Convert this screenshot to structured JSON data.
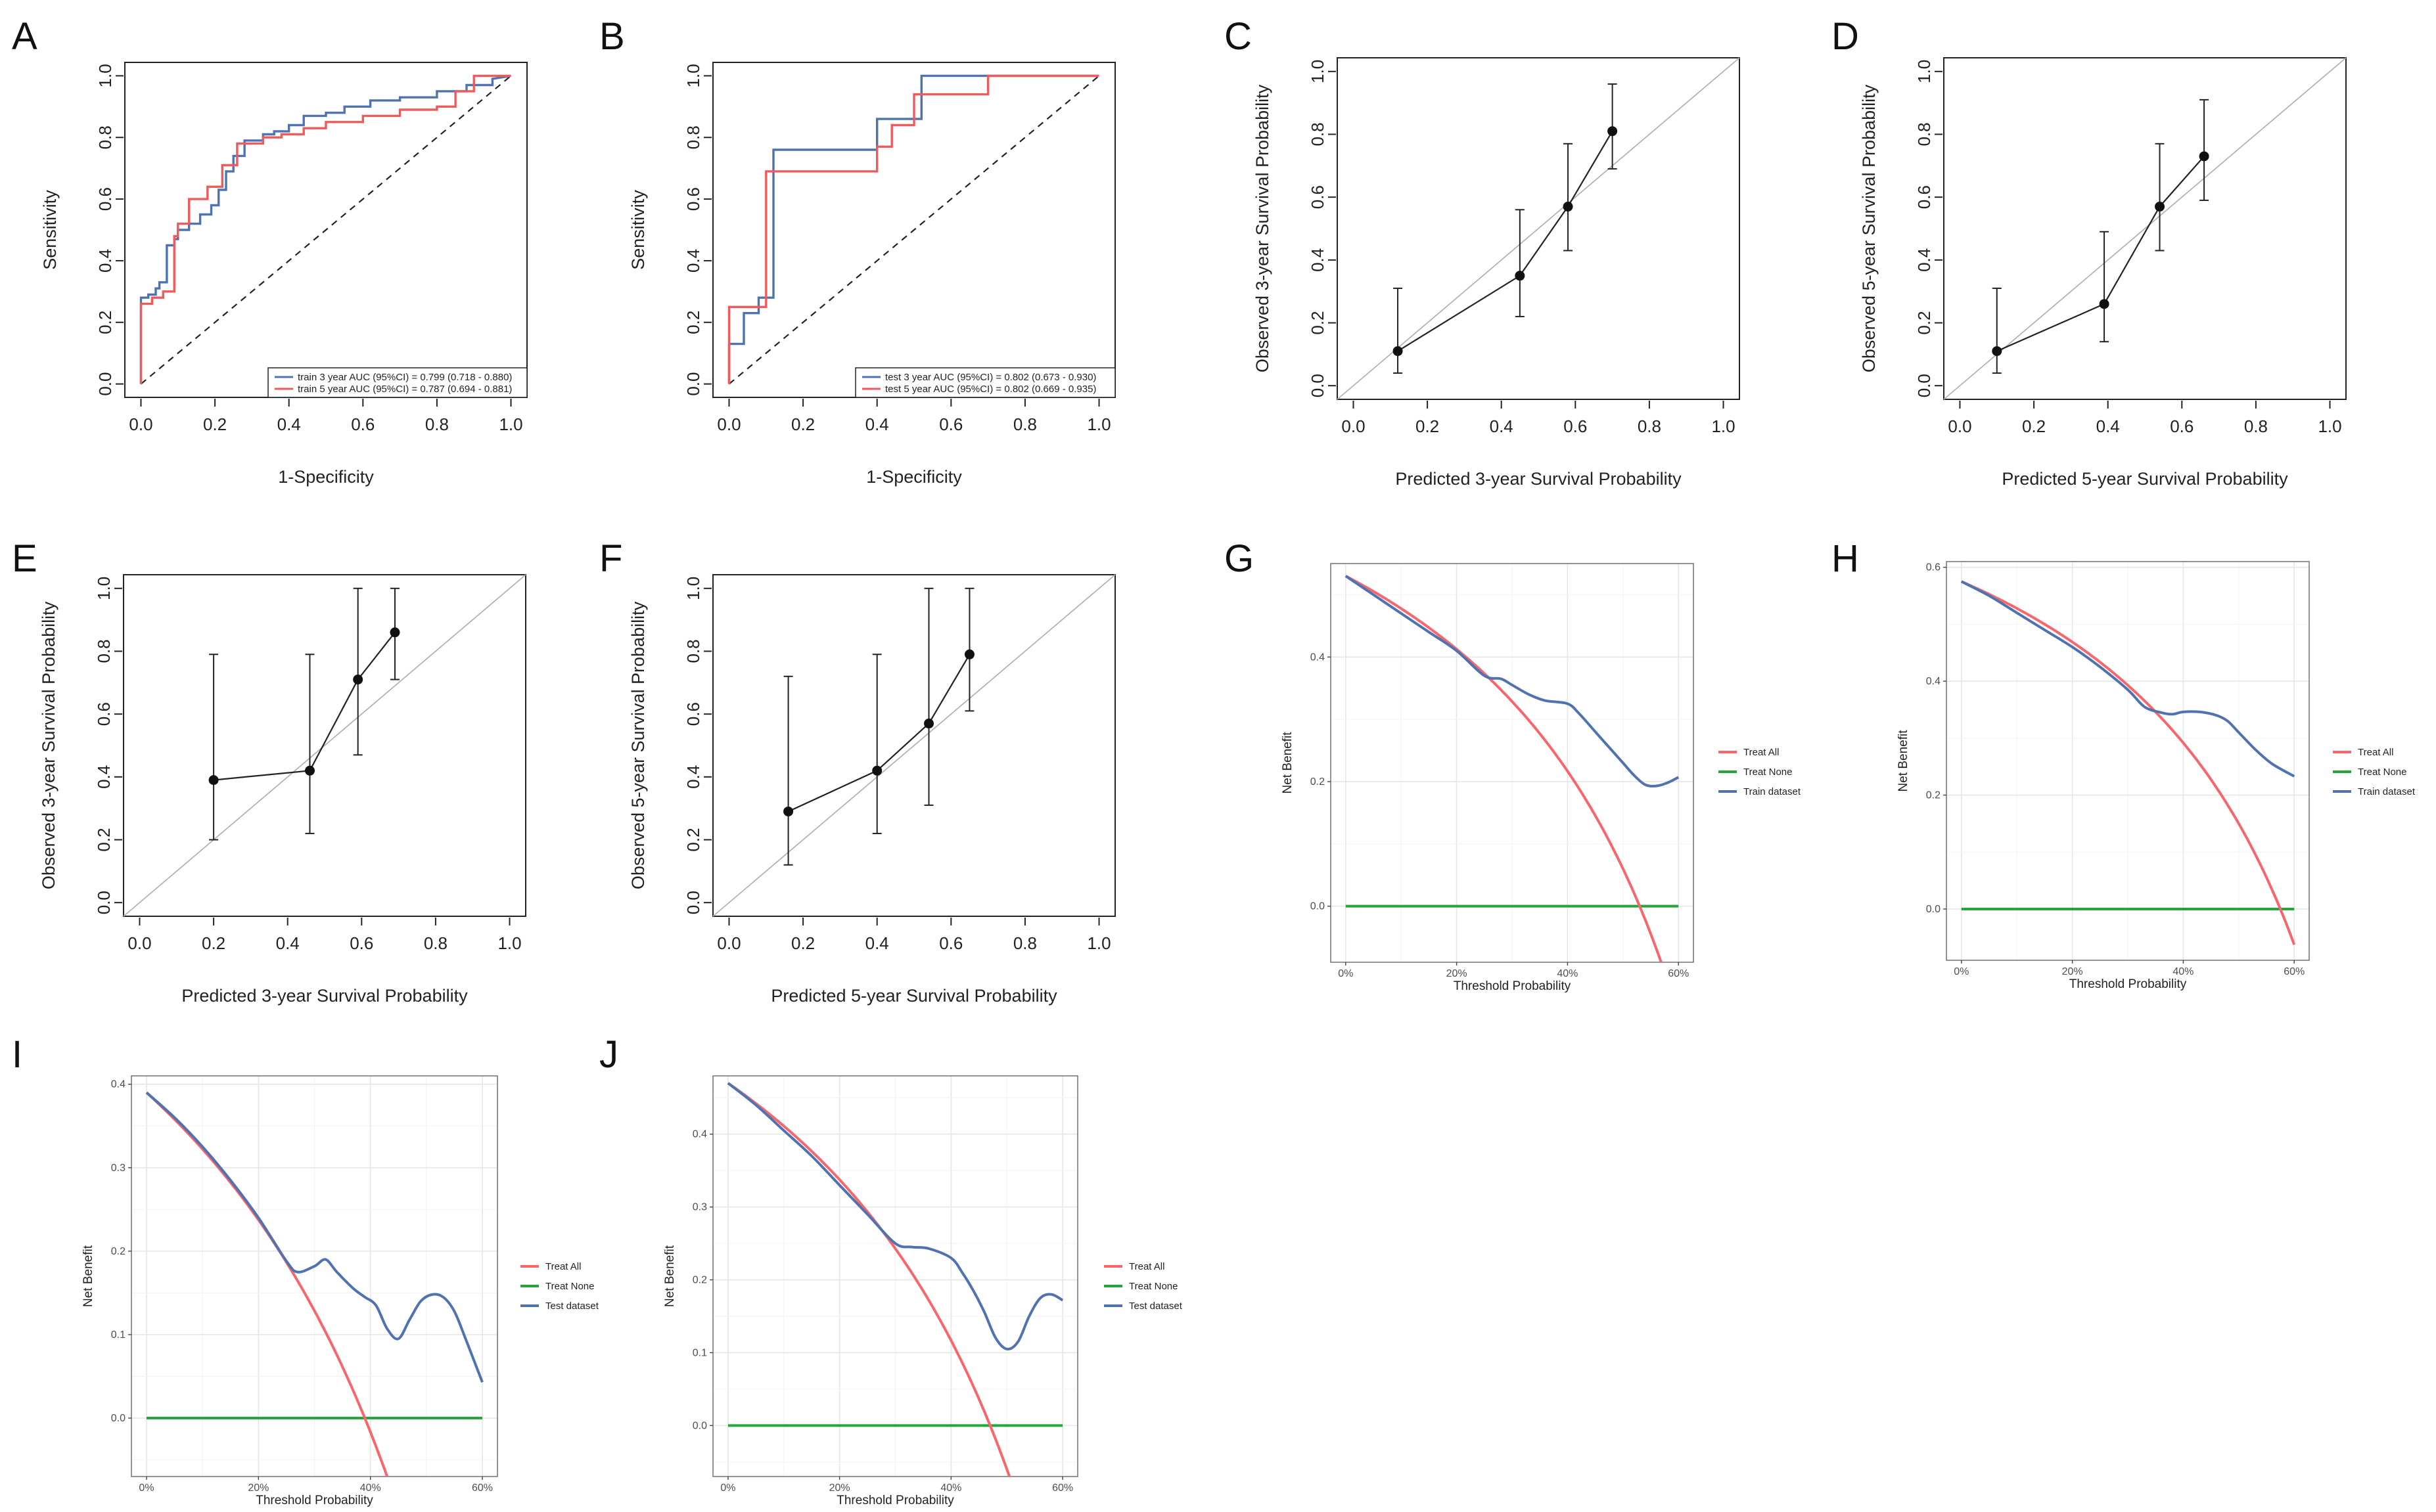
{
  "chart_data": [
    {
      "panel": "A",
      "type": "line",
      "xlabel": "1-Specificity",
      "ylabel": "Sensitivity",
      "xlim": [
        0,
        1
      ],
      "ylim": [
        0,
        1
      ],
      "ticks": [
        "0.0",
        "0.2",
        "0.4",
        "0.6",
        "0.8",
        "1.0"
      ],
      "diagonal": true,
      "series": [
        {
          "name": "train 3 year AUC (95%CI) = 0.799 (0.718 - 0.880)",
          "color": "#4f72b0",
          "x": [
            0,
            0,
            0.02,
            0.02,
            0.04,
            0.04,
            0.05,
            0.05,
            0.07,
            0.07,
            0.09,
            0.09,
            0.1,
            0.1,
            0.13,
            0.13,
            0.16,
            0.16,
            0.19,
            0.19,
            0.21,
            0.21,
            0.23,
            0.23,
            0.25,
            0.25,
            0.28,
            0.28,
            0.33,
            0.33,
            0.36,
            0.36,
            0.4,
            0.4,
            0.44,
            0.44,
            0.5,
            0.5,
            0.55,
            0.55,
            0.62,
            0.62,
            0.7,
            0.7,
            0.8,
            0.8,
            0.88,
            0.88,
            0.95,
            0.95,
            1
          ],
          "y": [
            0,
            0.28,
            0.28,
            0.29,
            0.29,
            0.31,
            0.31,
            0.33,
            0.33,
            0.45,
            0.45,
            0.47,
            0.47,
            0.5,
            0.5,
            0.52,
            0.52,
            0.55,
            0.55,
            0.58,
            0.58,
            0.63,
            0.63,
            0.69,
            0.69,
            0.74,
            0.74,
            0.79,
            0.79,
            0.81,
            0.81,
            0.82,
            0.82,
            0.84,
            0.84,
            0.87,
            0.87,
            0.88,
            0.88,
            0.9,
            0.9,
            0.92,
            0.92,
            0.93,
            0.93,
            0.95,
            0.95,
            0.97,
            0.97,
            0.99,
            1
          ]
        },
        {
          "name": "train 5 year AUC (95%CI) = 0.787 (0.694 - 0.881)",
          "color": "#f05a5a",
          "x": [
            0,
            0,
            0.03,
            0.03,
            0.06,
            0.06,
            0.09,
            0.09,
            0.1,
            0.1,
            0.13,
            0.13,
            0.18,
            0.18,
            0.22,
            0.22,
            0.26,
            0.26,
            0.33,
            0.33,
            0.38,
            0.38,
            0.44,
            0.44,
            0.5,
            0.5,
            0.6,
            0.6,
            0.7,
            0.7,
            0.8,
            0.8,
            0.85,
            0.85,
            0.9,
            0.9,
            1
          ],
          "y": [
            0,
            0.26,
            0.26,
            0.28,
            0.28,
            0.3,
            0.3,
            0.48,
            0.48,
            0.52,
            0.52,
            0.6,
            0.6,
            0.64,
            0.64,
            0.71,
            0.71,
            0.78,
            0.78,
            0.8,
            0.8,
            0.81,
            0.81,
            0.83,
            0.83,
            0.85,
            0.85,
            0.87,
            0.87,
            0.89,
            0.89,
            0.9,
            0.9,
            0.95,
            0.95,
            1,
            1
          ]
        }
      ]
    },
    {
      "panel": "B",
      "type": "line",
      "xlabel": "1-Specificity",
      "ylabel": "Sensitivity",
      "xlim": [
        0,
        1
      ],
      "ylim": [
        0,
        1
      ],
      "ticks": [
        "0.0",
        "0.2",
        "0.4",
        "0.6",
        "0.8",
        "1.0"
      ],
      "diagonal": true,
      "series": [
        {
          "name": "test 3 year AUC (95%CI) = 0.802 (0.673 - 0.930)",
          "color": "#4f72b0",
          "x": [
            0,
            0,
            0.04,
            0.04,
            0.08,
            0.08,
            0.12,
            0.12,
            0.16,
            0.16,
            0.4,
            0.4,
            0.48,
            0.48,
            0.52,
            0.52,
            1
          ],
          "y": [
            0,
            0.13,
            0.13,
            0.23,
            0.23,
            0.28,
            0.28,
            0.76,
            0.76,
            0.76,
            0.76,
            0.86,
            0.86,
            0.86,
            0.86,
            1,
            1
          ]
        },
        {
          "name": "test 5 year AUC (95%CI) = 0.802 (0.669 - 0.935)",
          "color": "#f05a5a",
          "x": [
            0,
            0,
            0.1,
            0.1,
            0.4,
            0.4,
            0.44,
            0.44,
            0.48,
            0.48,
            0.5,
            0.5,
            0.7,
            0.7,
            1
          ],
          "y": [
            0,
            0.25,
            0.25,
            0.69,
            0.69,
            0.77,
            0.77,
            0.84,
            0.84,
            0.84,
            0.84,
            0.94,
            0.94,
            1,
            1
          ]
        }
      ]
    },
    {
      "panel": "C",
      "type": "scatter",
      "xlabel": "Predicted 3-year Survival Probability",
      "ylabel": "Observed 3-year Survival Probability",
      "xlim": [
        0,
        1
      ],
      "ylim": [
        0,
        1
      ],
      "ticks": [
        "0.0",
        "0.2",
        "0.4",
        "0.6",
        "0.8",
        "1.0"
      ],
      "points": [
        {
          "x": 0.12,
          "y": 0.11,
          "lo": 0.04,
          "hi": 0.31
        },
        {
          "x": 0.45,
          "y": 0.35,
          "lo": 0.22,
          "hi": 0.56
        },
        {
          "x": 0.58,
          "y": 0.57,
          "lo": 0.43,
          "hi": 0.77
        },
        {
          "x": 0.7,
          "y": 0.81,
          "lo": 0.69,
          "hi": 0.96
        }
      ]
    },
    {
      "panel": "D",
      "type": "scatter",
      "xlabel": "Predicted 5-year Survival Probability",
      "ylabel": "Observed 5-year Survival Probability",
      "xlim": [
        0,
        1
      ],
      "ylim": [
        0,
        1
      ],
      "ticks": [
        "0.0",
        "0.2",
        "0.4",
        "0.6",
        "0.8",
        "1.0"
      ],
      "points": [
        {
          "x": 0.1,
          "y": 0.11,
          "lo": 0.04,
          "hi": 0.31
        },
        {
          "x": 0.39,
          "y": 0.26,
          "lo": 0.14,
          "hi": 0.49
        },
        {
          "x": 0.54,
          "y": 0.57,
          "lo": 0.43,
          "hi": 0.77
        },
        {
          "x": 0.66,
          "y": 0.73,
          "lo": 0.59,
          "hi": 0.91
        }
      ]
    },
    {
      "panel": "E",
      "type": "scatter",
      "xlabel": "Predicted 3-year Survival Probability",
      "ylabel": "Observed 3-year Survival Probability",
      "xlim": [
        0,
        1
      ],
      "ylim": [
        0,
        1
      ],
      "ticks": [
        "0.0",
        "0.2",
        "0.4",
        "0.6",
        "0.8",
        "1.0"
      ],
      "points": [
        {
          "x": 0.2,
          "y": 0.39,
          "lo": 0.2,
          "hi": 0.79
        },
        {
          "x": 0.46,
          "y": 0.42,
          "lo": 0.22,
          "hi": 0.79
        },
        {
          "x": 0.59,
          "y": 0.71,
          "lo": 0.47,
          "hi": 1.0
        },
        {
          "x": 0.69,
          "y": 0.86,
          "lo": 0.71,
          "hi": 1.0
        }
      ]
    },
    {
      "panel": "F",
      "type": "scatter",
      "xlabel": "Predicted 5-year Survival Probability",
      "ylabel": "Observed 5-year Survival Probability",
      "xlim": [
        0,
        1
      ],
      "ylim": [
        0,
        1
      ],
      "ticks": [
        "0.0",
        "0.2",
        "0.4",
        "0.6",
        "0.8",
        "1.0"
      ],
      "points": [
        {
          "x": 0.16,
          "y": 0.29,
          "lo": 0.12,
          "hi": 0.72
        },
        {
          "x": 0.4,
          "y": 0.42,
          "lo": 0.22,
          "hi": 0.79
        },
        {
          "x": 0.54,
          "y": 0.57,
          "lo": 0.31,
          "hi": 1.0
        },
        {
          "x": 0.65,
          "y": 0.79,
          "lo": 0.61,
          "hi": 1.0
        }
      ]
    },
    {
      "panel": "G",
      "type": "line",
      "xlabel": "Threshold Probability",
      "ylabel": "Net Benefit",
      "xlim": [
        0,
        0.6
      ],
      "ylim": [
        -0.09,
        0.55
      ],
      "xticks": [
        {
          "v": 0,
          "label": "0%"
        },
        {
          "v": 0.2,
          "label": "20%"
        },
        {
          "v": 0.4,
          "label": "40%"
        },
        {
          "v": 0.6,
          "label": "60%"
        }
      ],
      "yticks": [
        {
          "v": 0,
          "label": "0.0"
        },
        {
          "v": 0.2,
          "label": "0.2"
        },
        {
          "v": 0.4,
          "label": "0.4"
        }
      ],
      "prevalence": 0.53,
      "model": {
        "name": "Train dataset",
        "color": "#4f72b0",
        "x": [
          0,
          0.05,
          0.1,
          0.15,
          0.2,
          0.25,
          0.28,
          0.3,
          0.33,
          0.36,
          0.4,
          0.42,
          0.45,
          0.48,
          0.5,
          0.52,
          0.54,
          0.56,
          0.58,
          0.6
        ],
        "y": [
          0.53,
          0.5,
          0.47,
          0.44,
          0.41,
          0.37,
          0.365,
          0.355,
          0.34,
          0.33,
          0.325,
          0.31,
          0.28,
          0.25,
          0.23,
          0.21,
          0.195,
          0.193,
          0.198,
          0.207
        ]
      },
      "legend": [
        "Treat All",
        "Treat None",
        "Train dataset"
      ],
      "colors": {
        "treat_all": "#f8666b",
        "treat_none": "#25a53b"
      }
    },
    {
      "panel": "H",
      "type": "line",
      "xlabel": "Threshold Probability",
      "ylabel": "Net Benefit",
      "xlim": [
        0,
        0.6
      ],
      "ylim": [
        -0.09,
        0.61
      ],
      "xticks": [
        {
          "v": 0,
          "label": "0%"
        },
        {
          "v": 0.2,
          "label": "20%"
        },
        {
          "v": 0.4,
          "label": "40%"
        },
        {
          "v": 0.6,
          "label": "60%"
        }
      ],
      "yticks": [
        {
          "v": 0,
          "label": "0.0"
        },
        {
          "v": 0.2,
          "label": "0.2"
        },
        {
          "v": 0.4,
          "label": "0.4"
        },
        {
          "v": 0.6,
          "label": "0.6"
        }
      ],
      "prevalence": 0.575,
      "model": {
        "name": "Train dataset",
        "color": "#4f72b0",
        "x": [
          0,
          0.05,
          0.1,
          0.15,
          0.2,
          0.25,
          0.3,
          0.33,
          0.36,
          0.38,
          0.4,
          0.43,
          0.46,
          0.48,
          0.5,
          0.53,
          0.56,
          0.6
        ],
        "y": [
          0.575,
          0.55,
          0.52,
          0.49,
          0.46,
          0.425,
          0.385,
          0.355,
          0.345,
          0.342,
          0.346,
          0.346,
          0.34,
          0.33,
          0.31,
          0.28,
          0.255,
          0.233
        ]
      },
      "legend": [
        "Treat All",
        "Treat None",
        "Train dataset"
      ],
      "colors": {
        "treat_all": "#f8666b",
        "treat_none": "#25a53b"
      }
    },
    {
      "panel": "I",
      "type": "line",
      "xlabel": "Threshold Probability",
      "ylabel": "Net Benefit",
      "xlim": [
        0,
        0.6
      ],
      "ylim": [
        -0.07,
        0.41
      ],
      "xticks": [
        {
          "v": 0,
          "label": "0%"
        },
        {
          "v": 0.2,
          "label": "20%"
        },
        {
          "v": 0.4,
          "label": "40%"
        },
        {
          "v": 0.6,
          "label": "60%"
        }
      ],
      "yticks": [
        {
          "v": 0,
          "label": "0.0"
        },
        {
          "v": 0.1,
          "label": "0.1"
        },
        {
          "v": 0.2,
          "label": "0.2"
        },
        {
          "v": 0.3,
          "label": "0.3"
        },
        {
          "v": 0.4,
          "label": "0.4"
        }
      ],
      "prevalence": 0.39,
      "model": {
        "name": "Test dataset",
        "color": "#4f72b0",
        "x": [
          0,
          0.05,
          0.1,
          0.15,
          0.2,
          0.25,
          0.27,
          0.3,
          0.32,
          0.34,
          0.37,
          0.39,
          0.41,
          0.43,
          0.45,
          0.47,
          0.49,
          0.51,
          0.53,
          0.55,
          0.57,
          0.6
        ],
        "y": [
          0.39,
          0.36,
          0.325,
          0.285,
          0.24,
          0.188,
          0.175,
          0.182,
          0.19,
          0.175,
          0.155,
          0.145,
          0.135,
          0.107,
          0.095,
          0.118,
          0.14,
          0.148,
          0.145,
          0.128,
          0.095,
          0.043
        ]
      },
      "legend": [
        "Treat All",
        "Treat None",
        "Test dataset"
      ],
      "colors": {
        "treat_all": "#f8666b",
        "treat_none": "#25a53b"
      }
    },
    {
      "panel": "J",
      "type": "line",
      "xlabel": "Threshold Probability",
      "ylabel": "Net Benefit",
      "xlim": [
        0,
        0.6
      ],
      "ylim": [
        -0.07,
        0.48
      ],
      "xticks": [
        {
          "v": 0,
          "label": "0%"
        },
        {
          "v": 0.2,
          "label": "20%"
        },
        {
          "v": 0.4,
          "label": "40%"
        },
        {
          "v": 0.6,
          "label": "60%"
        }
      ],
      "yticks": [
        {
          "v": 0,
          "label": "0.0"
        },
        {
          "v": 0.1,
          "label": "0.1"
        },
        {
          "v": 0.2,
          "label": "0.2"
        },
        {
          "v": 0.3,
          "label": "0.3"
        },
        {
          "v": 0.4,
          "label": "0.4"
        }
      ],
      "prevalence": 0.47,
      "model": {
        "name": "Test dataset",
        "color": "#4f72b0",
        "x": [
          0,
          0.05,
          0.1,
          0.15,
          0.2,
          0.25,
          0.3,
          0.33,
          0.36,
          0.4,
          0.42,
          0.44,
          0.46,
          0.48,
          0.5,
          0.52,
          0.54,
          0.56,
          0.58,
          0.6
        ],
        "y": [
          0.47,
          0.44,
          0.405,
          0.37,
          0.33,
          0.29,
          0.25,
          0.245,
          0.243,
          0.23,
          0.21,
          0.185,
          0.155,
          0.12,
          0.105,
          0.115,
          0.15,
          0.175,
          0.18,
          0.172
        ]
      },
      "legend": [
        "Treat All",
        "Treat None",
        "Test dataset"
      ],
      "colors": {
        "treat_all": "#f8666b",
        "treat_none": "#25a53b"
      }
    }
  ]
}
